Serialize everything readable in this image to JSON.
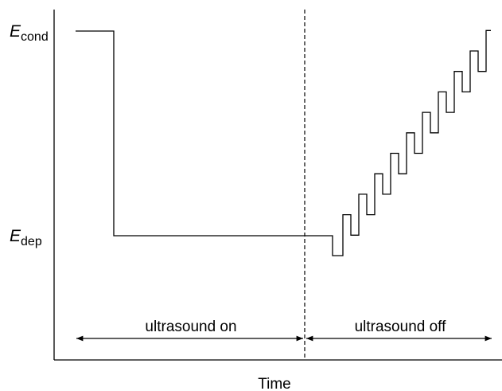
{
  "y_labels": [
    {
      "symbol": "E",
      "subscript": "cond"
    },
    {
      "symbol": "E",
      "subscript": "dep"
    }
  ],
  "phases": [
    "ultrasound on",
    "ultrasound off"
  ],
  "x_axis_label": "Time"
}
